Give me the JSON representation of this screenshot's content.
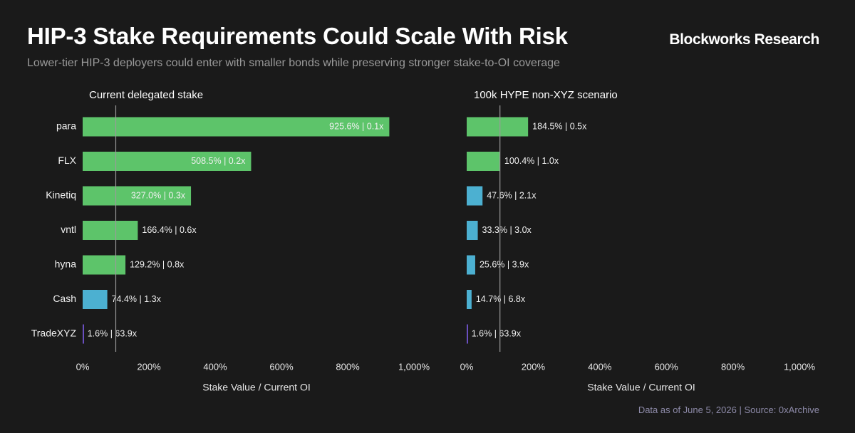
{
  "header": {
    "title": "HIP-3 Stake Requirements Could Scale With Risk",
    "brand": "Blockworks Research",
    "subtitle": "Lower-tier HIP-3 deployers could enter with smaller bonds while preserving stronger stake-to-OI coverage"
  },
  "footer": {
    "date": "Data as of June 5, 2026",
    "separator": "|",
    "source": "Source: 0xArchive"
  },
  "colors": {
    "green": "#5dc46a",
    "blue": "#4cb0d1",
    "purple": "#6a4fc0",
    "reference_line": "#9a9a9a",
    "background": "#1a1a1a"
  },
  "chart_data": [
    {
      "type": "bar",
      "orientation": "horizontal",
      "title": "Current delegated stake",
      "xlabel": "Stake Value / Current OI",
      "xlim": [
        0,
        1000
      ],
      "xticks": [
        0,
        200,
        400,
        600,
        800,
        1000
      ],
      "xtick_labels": [
        "0%",
        "200%",
        "400%",
        "600%",
        "800%",
        "1,000%"
      ],
      "reference_line_x": 100,
      "categories": [
        "para",
        "FLX",
        "Kinetiq",
        "vntl",
        "hyna",
        "Cash",
        "TradeXYZ"
      ],
      "values": [
        925.6,
        508.5,
        327.0,
        166.4,
        129.2,
        74.4,
        1.6
      ],
      "labels": [
        "925.6% | 0.1x",
        "508.5% | 0.2x",
        "327.0% | 0.3x",
        "166.4% | 0.6x",
        "129.2% | 0.8x",
        "74.4% | 1.3x",
        "1.6% | 63.9x"
      ],
      "bar_colors": [
        "green",
        "green",
        "green",
        "green",
        "green",
        "blue",
        "purple"
      ],
      "label_inside": [
        true,
        true,
        true,
        false,
        false,
        false,
        false
      ]
    },
    {
      "type": "bar",
      "orientation": "horizontal",
      "title": "100k HYPE non-XYZ scenario",
      "xlabel": "Stake Value / Current OI",
      "xlim": [
        0,
        1000
      ],
      "xticks": [
        0,
        200,
        400,
        600,
        800,
        1000
      ],
      "xtick_labels": [
        "0%",
        "200%",
        "400%",
        "600%",
        "800%",
        "1,000%"
      ],
      "reference_line_x": 100,
      "categories": [
        "para",
        "FLX",
        "Kinetiq",
        "vntl",
        "hyna",
        "Cash",
        "TradeXYZ"
      ],
      "values": [
        184.5,
        100.4,
        47.6,
        33.3,
        25.6,
        14.7,
        1.6
      ],
      "labels": [
        "184.5% | 0.5x",
        "100.4% | 1.0x",
        "47.6% | 2.1x",
        "33.3% | 3.0x",
        "25.6% | 3.9x",
        "14.7% | 6.8x",
        "1.6% | 63.9x"
      ],
      "bar_colors": [
        "green",
        "green",
        "blue",
        "blue",
        "blue",
        "blue",
        "purple"
      ],
      "label_inside": [
        false,
        false,
        false,
        false,
        false,
        false,
        false
      ],
      "show_category_labels": false
    }
  ]
}
